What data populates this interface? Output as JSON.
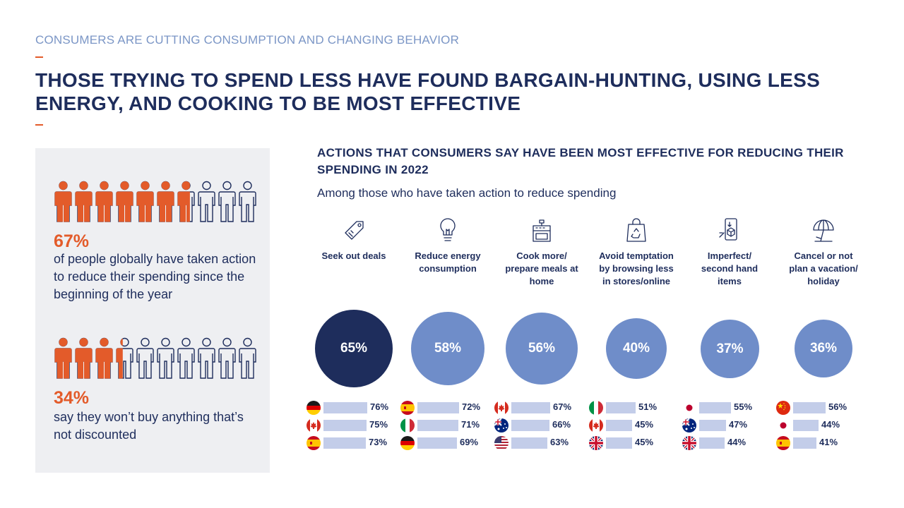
{
  "header": {
    "kicker": "CONSUMERS ARE CUTTING CONSUMPTION AND CHANGING BEHAVIOR",
    "title": "THOSE TRYING TO SPEND LESS HAVE FOUND BARGAIN-HUNTING, USING LESS ENERGY, AND COOKING TO BE MOST EFFECTIVE"
  },
  "left_panel": {
    "stat1": {
      "pct": "67%",
      "text": "of people globally have taken action to reduce their spending since the beginning of the year",
      "fraction": 0.67
    },
    "stat2": {
      "pct": "34%",
      "text": "say they won’t buy anything that’s not discounted",
      "fraction": 0.34
    }
  },
  "colors": {
    "navy": "#1e2d5c",
    "orange": "#e35b2a",
    "bubble_light": "#6f8dc9",
    "bubble_dark": "#1e2d5c",
    "country_bar": "#c3cde9",
    "panel_bg": "#eeeff2"
  },
  "chart_data": {
    "type": "bar",
    "title": "ACTIONS THAT CONSUMERS SAY HAVE BEEN MOST EFFECTIVE FOR REDUCING THEIR SPENDING IN 2022",
    "subtitle": "Among those who have taken action to reduce spending",
    "unit": "%",
    "categories": [
      {
        "label": "Seek out deals",
        "icon": "price-tag-icon",
        "value": 65,
        "value_label": "65%",
        "highlight": true,
        "countries": [
          {
            "flag": "germany-flag",
            "value": 76,
            "label": "76%"
          },
          {
            "flag": "canada-flag",
            "value": 75,
            "label": "75%"
          },
          {
            "flag": "spain-flag",
            "value": 73,
            "label": "73%"
          }
        ]
      },
      {
        "label": "Reduce energy consumption",
        "icon": "lightbulb-icon",
        "value": 58,
        "value_label": "58%",
        "highlight": false,
        "countries": [
          {
            "flag": "spain-flag",
            "value": 72,
            "label": "72%"
          },
          {
            "flag": "italy-flag",
            "value": 71,
            "label": "71%"
          },
          {
            "flag": "germany-flag",
            "value": 69,
            "label": "69%"
          }
        ]
      },
      {
        "label": "Cook more/ prepare meals at home",
        "icon": "kitchen-stove-icon",
        "value": 56,
        "value_label": "56%",
        "highlight": false,
        "countries": [
          {
            "flag": "canada-flag",
            "value": 67,
            "label": "67%"
          },
          {
            "flag": "australia-flag",
            "value": 66,
            "label": "66%"
          },
          {
            "flag": "usa-flag",
            "value": 63,
            "label": "63%"
          }
        ]
      },
      {
        "label": "Avoid temptation by browsing less in stores/online",
        "icon": "recycle-bag-icon",
        "value": 40,
        "value_label": "40%",
        "highlight": false,
        "countries": [
          {
            "flag": "italy-flag",
            "value": 51,
            "label": "51%"
          },
          {
            "flag": "canada-flag",
            "value": 45,
            "label": "45%"
          },
          {
            "flag": "uk-flag",
            "value": 45,
            "label": "45%"
          }
        ]
      },
      {
        "label": "Imperfect/ second hand items",
        "icon": "phone-box-icon",
        "value": 37,
        "value_label": "37%",
        "highlight": false,
        "countries": [
          {
            "flag": "japan-flag",
            "value": 55,
            "label": "55%"
          },
          {
            "flag": "australia-flag",
            "value": 47,
            "label": "47%"
          },
          {
            "flag": "uk-flag",
            "value": 44,
            "label": "44%"
          }
        ]
      },
      {
        "label": "Cancel or not plan a vacation/ holiday",
        "icon": "beach-umbrella-icon",
        "value": 36,
        "value_label": "36%",
        "highlight": false,
        "countries": [
          {
            "flag": "china-flag",
            "value": 56,
            "label": "56%"
          },
          {
            "flag": "japan-flag",
            "value": 44,
            "label": "44%"
          },
          {
            "flag": "spain-flag",
            "value": 41,
            "label": "41%"
          }
        ]
      }
    ]
  }
}
